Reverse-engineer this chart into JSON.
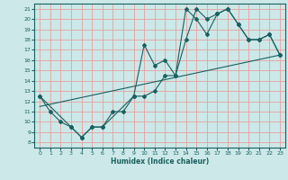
{
  "title": "",
  "xlabel": "Humidex (Indice chaleur)",
  "bg_color": "#cce8e8",
  "grid_color": "#e8a0a0",
  "line_color": "#1a6060",
  "xlim": [
    -0.5,
    23.5
  ],
  "ylim": [
    7.5,
    21.5
  ],
  "yticks": [
    8,
    9,
    10,
    11,
    12,
    13,
    14,
    15,
    16,
    17,
    18,
    19,
    20,
    21
  ],
  "xticks": [
    0,
    1,
    2,
    3,
    4,
    5,
    6,
    7,
    8,
    9,
    10,
    11,
    12,
    13,
    14,
    15,
    16,
    17,
    18,
    19,
    20,
    21,
    22,
    23
  ],
  "series1_x": [
    0,
    1,
    2,
    3,
    4,
    5,
    6,
    7,
    8,
    9,
    10,
    11,
    12,
    13,
    14,
    15,
    16,
    17,
    18,
    19,
    20,
    21,
    22,
    23
  ],
  "series1_y": [
    12.5,
    11.0,
    10.0,
    9.5,
    8.5,
    9.5,
    9.5,
    11.0,
    11.0,
    12.5,
    12.5,
    13.0,
    14.5,
    14.5,
    21.0,
    20.0,
    18.5,
    20.5,
    21.0,
    19.5,
    18.0,
    18.0,
    18.5,
    16.5
  ],
  "series2_x": [
    0,
    3,
    4,
    5,
    6,
    9,
    10,
    11,
    12,
    13,
    14,
    15,
    16,
    17,
    18,
    19,
    20,
    21,
    22,
    23
  ],
  "series2_y": [
    12.5,
    9.5,
    8.5,
    9.5,
    9.5,
    12.5,
    17.5,
    15.5,
    16.0,
    14.5,
    18.0,
    21.0,
    20.0,
    20.5,
    21.0,
    19.5,
    18.0,
    18.0,
    18.5,
    16.5
  ],
  "series3_x": [
    0,
    23
  ],
  "series3_y": [
    11.5,
    16.5
  ]
}
